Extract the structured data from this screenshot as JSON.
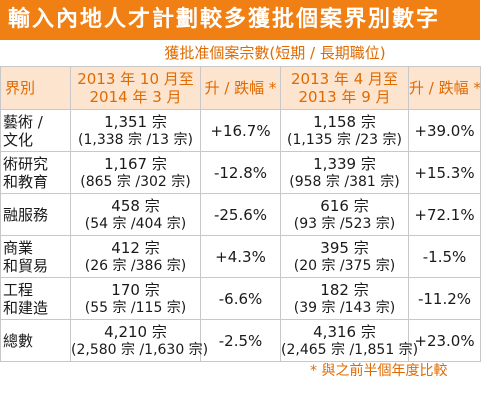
{
  "title": "輸入內地人才計劃較多獲批個案界別數字",
  "subheader": "獲批准個案宗數(短期 / 長期職位)",
  "columns": {
    "category": "界別",
    "period1": [
      "2013 年 10 月至",
      "2014 年 3 月"
    ],
    "change1": "升 / 跌幅 *",
    "period2": [
      "2013 年 4 月至",
      "2013 年 9 月"
    ],
    "change2": "升 / 跌幅 *"
  },
  "rows": [
    {
      "category": [
        "藝術 /",
        "文化"
      ],
      "p1_total": "1,351 宗",
      "p1_detail": "(1,338 宗 /13 宗)",
      "change1": "+16.7%",
      "p2_total": "1,158 宗",
      "p2_detail": "(1,135 宗 /23 宗)",
      "change2": "+39.0%"
    },
    {
      "category": [
        "術研究",
        "和教育"
      ],
      "p1_total": "1,167 宗",
      "p1_detail": "(865 宗 /302 宗)",
      "change1": "-12.8%",
      "p2_total": "1,339 宗",
      "p2_detail": "(958 宗 /381 宗)",
      "change2": "+15.3%"
    },
    {
      "category": [
        "融服務",
        ""
      ],
      "p1_total": "458 宗",
      "p1_detail": "(54 宗 /404 宗)",
      "change1": "-25.6%",
      "p2_total": "616 宗",
      "p2_detail": "(93 宗 /523 宗)",
      "change2": "+72.1%"
    },
    {
      "category": [
        "商業",
        "和貿易"
      ],
      "p1_total": "412 宗",
      "p1_detail": "(26 宗 /386 宗)",
      "change1": "+4.3%",
      "p2_total": "395 宗",
      "p2_detail": "(20 宗 /375 宗)",
      "change2": "-1.5%"
    },
    {
      "category": [
        "工程",
        "和建造"
      ],
      "p1_total": "170 宗",
      "p1_detail": "(55 宗 /115 宗)",
      "change1": "-6.6%",
      "p2_total": "182 宗",
      "p2_detail": "(39 宗 /143 宗)",
      "change2": "-11.2%"
    },
    {
      "category": [
        "總數",
        ""
      ],
      "p1_total": "4,210 宗",
      "p1_detail": "(2,580 宗 /1,630 宗)",
      "change1": "-2.5%",
      "p2_total": "4,316 宗",
      "p2_detail": "(2,465 宗 /1,851 宗)",
      "change2": "+23.0%"
    }
  ],
  "footnote": "* 與之前半個年度比較"
}
